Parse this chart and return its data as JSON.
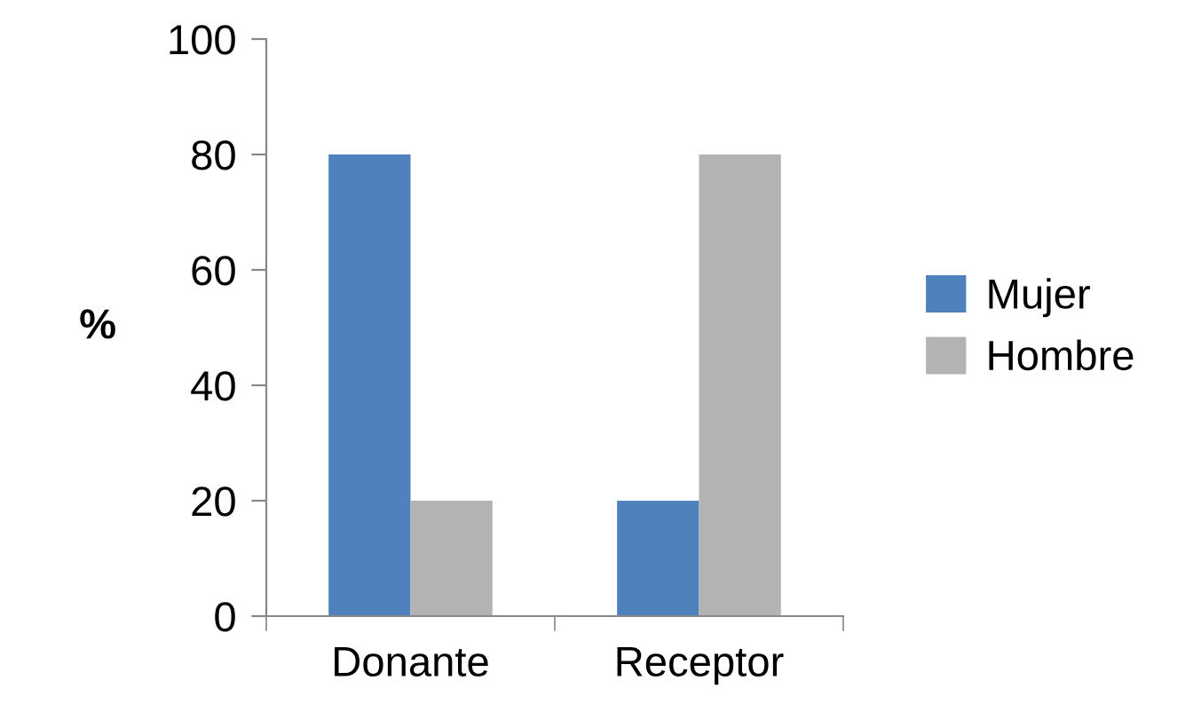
{
  "chart_data": {
    "type": "bar",
    "ylabel": "%",
    "categories": [
      "Donante",
      "Receptor"
    ],
    "series": [
      {
        "name": "Mujer",
        "color": "#4f81bd",
        "values": [
          80,
          20
        ]
      },
      {
        "name": "Hombre",
        "color": "#b3b3b3",
        "values": [
          20,
          80
        ]
      }
    ],
    "ylim": [
      0,
      100
    ],
    "yticks": [
      0,
      20,
      40,
      60,
      80,
      100
    ],
    "grid": false,
    "legend": "right"
  }
}
